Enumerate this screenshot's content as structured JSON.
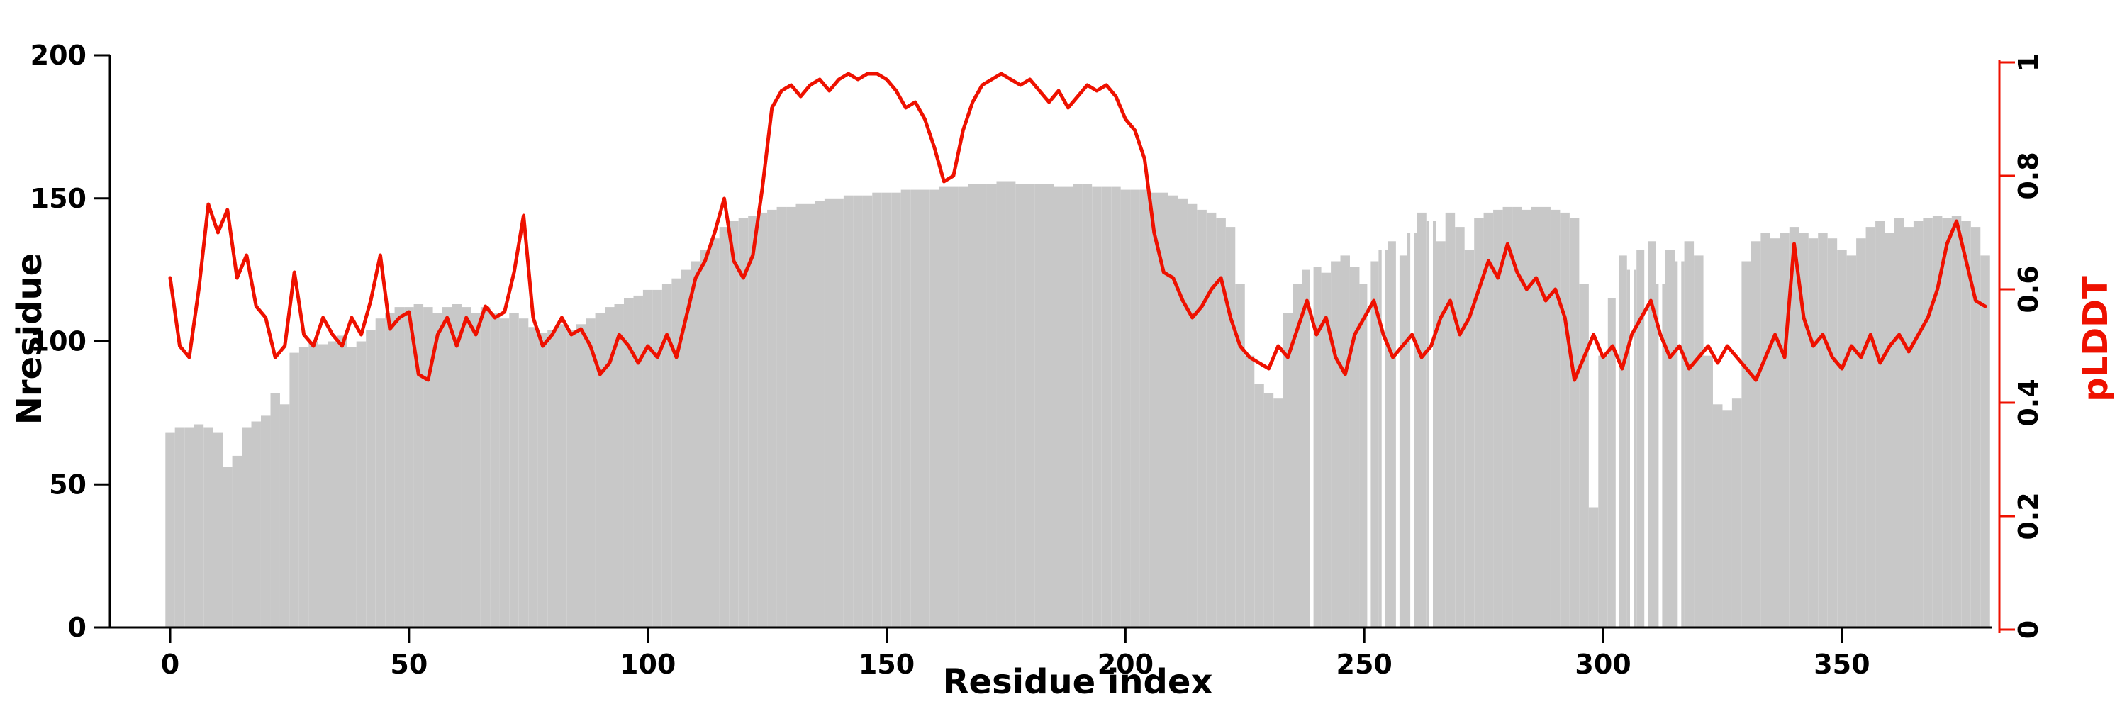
{
  "figure": {
    "background": "#ffffff"
  },
  "colors": {
    "bar": "#c8c8c8",
    "line": "#ee1100",
    "axis": "#000000",
    "bar_gap": "#ffffff"
  },
  "chart_data": {
    "type": "bar",
    "combo": "bar (left axis) + line (right axis), dual y-axes",
    "title": "",
    "xlabel": "Residue index",
    "ylabel_left": "Nresidue",
    "ylabel_right": "pLDDT",
    "xlim": [
      -10,
      395
    ],
    "x_ticks": [
      0,
      50,
      100,
      150,
      200,
      250,
      300,
      350
    ],
    "ylim_left": [
      0,
      200
    ],
    "y_ticks_left": [
      0,
      50,
      100,
      150,
      200
    ],
    "ylim_right": [
      0,
      1
    ],
    "y_ticks_right": [
      0,
      0.2,
      0.4,
      0.6,
      0.8,
      1
    ],
    "grid": false,
    "legend": "none",
    "x": [
      0,
      2,
      4,
      6,
      8,
      10,
      12,
      14,
      16,
      18,
      20,
      22,
      24,
      26,
      28,
      30,
      32,
      34,
      36,
      38,
      40,
      42,
      44,
      46,
      48,
      50,
      52,
      54,
      56,
      58,
      60,
      62,
      64,
      66,
      68,
      70,
      72,
      74,
      76,
      78,
      80,
      82,
      84,
      86,
      88,
      90,
      92,
      94,
      96,
      98,
      100,
      102,
      104,
      106,
      108,
      110,
      112,
      114,
      116,
      118,
      120,
      122,
      124,
      126,
      128,
      130,
      132,
      134,
      136,
      138,
      140,
      142,
      144,
      146,
      148,
      150,
      152,
      154,
      156,
      158,
      160,
      162,
      164,
      166,
      168,
      170,
      172,
      174,
      176,
      178,
      180,
      182,
      184,
      186,
      188,
      190,
      192,
      194,
      196,
      198,
      200,
      202,
      204,
      206,
      208,
      210,
      212,
      214,
      216,
      218,
      220,
      222,
      224,
      226,
      228,
      230,
      232,
      234,
      236,
      238,
      240,
      242,
      244,
      246,
      248,
      250,
      252,
      254,
      256,
      258,
      260,
      262,
      264,
      266,
      268,
      270,
      272,
      274,
      276,
      278,
      280,
      282,
      284,
      286,
      288,
      290,
      292,
      294,
      296,
      298,
      300,
      302,
      304,
      306,
      308,
      310,
      312,
      314,
      316,
      318,
      320,
      322,
      324,
      326,
      328,
      330,
      332,
      334,
      336,
      338,
      340,
      342,
      344,
      346,
      348,
      350,
      352,
      354,
      356,
      358,
      360,
      362,
      364,
      366,
      368,
      370,
      372,
      374,
      376,
      378,
      380
    ],
    "series": [
      {
        "name": "Nresidue",
        "type": "bar",
        "axis": "left",
        "color": "#c8c8c8",
        "values": [
          68,
          70,
          70,
          71,
          70,
          68,
          56,
          60,
          70,
          72,
          74,
          82,
          78,
          96,
          98,
          100,
          99,
          100,
          102,
          98,
          100,
          104,
          108,
          110,
          112,
          112,
          113,
          112,
          110,
          112,
          113,
          112,
          110,
          112,
          110,
          108,
          110,
          108,
          105,
          103,
          104,
          106,
          104,
          106,
          108,
          110,
          112,
          113,
          115,
          116,
          118,
          118,
          120,
          122,
          125,
          128,
          132,
          136,
          140,
          142,
          143,
          144,
          145,
          146,
          147,
          147,
          148,
          148,
          149,
          150,
          150,
          151,
          151,
          151,
          152,
          152,
          152,
          153,
          153,
          153,
          153,
          154,
          154,
          154,
          155,
          155,
          155,
          156,
          156,
          155,
          155,
          155,
          155,
          154,
          154,
          155,
          155,
          154,
          154,
          154,
          153,
          153,
          153,
          152,
          152,
          151,
          150,
          148,
          146,
          145,
          143,
          140,
          120,
          95,
          85,
          82,
          80,
          110,
          120,
          125,
          126,
          124,
          128,
          130,
          126,
          120,
          128,
          132,
          135,
          130,
          138,
          145,
          142,
          135,
          145,
          140,
          132,
          143,
          145,
          146,
          147,
          147,
          146,
          147,
          147,
          146,
          145,
          143,
          120,
          42,
          95,
          115,
          130,
          125,
          132,
          135,
          120,
          132,
          128,
          135,
          130,
          95,
          78,
          76,
          80,
          128,
          135,
          138,
          136,
          138,
          140,
          138,
          136,
          138,
          136,
          132,
          130,
          136,
          140,
          142,
          138,
          143,
          140,
          142,
          143,
          144,
          143,
          144,
          142,
          140,
          130
        ]
      },
      {
        "name": "pLDDT",
        "type": "line",
        "axis": "right",
        "color": "#ee1100",
        "values": [
          0.62,
          0.5,
          0.48,
          0.6,
          0.75,
          0.7,
          0.74,
          0.62,
          0.66,
          0.57,
          0.55,
          0.48,
          0.5,
          0.63,
          0.52,
          0.5,
          0.55,
          0.52,
          0.5,
          0.55,
          0.52,
          0.58,
          0.66,
          0.53,
          0.55,
          0.56,
          0.45,
          0.44,
          0.52,
          0.55,
          0.5,
          0.55,
          0.52,
          0.57,
          0.55,
          0.56,
          0.63,
          0.73,
          0.55,
          0.5,
          0.52,
          0.55,
          0.52,
          0.53,
          0.5,
          0.45,
          0.47,
          0.52,
          0.5,
          0.47,
          0.5,
          0.48,
          0.52,
          0.48,
          0.55,
          0.62,
          0.65,
          0.7,
          0.76,
          0.65,
          0.62,
          0.66,
          0.78,
          0.92,
          0.95,
          0.96,
          0.94,
          0.96,
          0.97,
          0.95,
          0.97,
          0.98,
          0.97,
          0.98,
          0.98,
          0.97,
          0.95,
          0.92,
          0.93,
          0.9,
          0.85,
          0.79,
          0.8,
          0.88,
          0.93,
          0.96,
          0.97,
          0.98,
          0.97,
          0.96,
          0.97,
          0.95,
          0.93,
          0.95,
          0.92,
          0.94,
          0.96,
          0.95,
          0.96,
          0.94,
          0.9,
          0.88,
          0.83,
          0.7,
          0.63,
          0.62,
          0.58,
          0.55,
          0.57,
          0.6,
          0.62,
          0.55,
          0.5,
          0.48,
          0.47,
          0.46,
          0.5,
          0.48,
          0.53,
          0.58,
          0.52,
          0.55,
          0.48,
          0.45,
          0.52,
          0.55,
          0.58,
          0.52,
          0.48,
          0.5,
          0.52,
          0.48,
          0.5,
          0.55,
          0.58,
          0.52,
          0.55,
          0.6,
          0.65,
          0.62,
          0.68,
          0.63,
          0.6,
          0.62,
          0.58,
          0.6,
          0.55,
          0.44,
          0.48,
          0.52,
          0.48,
          0.5,
          0.46,
          0.52,
          0.55,
          0.58,
          0.52,
          0.48,
          0.5,
          0.46,
          0.48,
          0.5,
          0.47,
          0.5,
          0.48,
          0.46,
          0.44,
          0.48,
          0.52,
          0.48,
          0.68,
          0.55,
          0.5,
          0.52,
          0.48,
          0.46,
          0.5,
          0.48,
          0.52,
          0.47,
          0.5,
          0.52,
          0.49,
          0.52,
          0.55,
          0.6,
          0.68,
          0.72,
          0.65,
          0.58,
          0.57
        ]
      }
    ],
    "bar_gaps_at": [
      239,
      251,
      254,
      257,
      260,
      264,
      303,
      306,
      309,
      312,
      316
    ]
  }
}
